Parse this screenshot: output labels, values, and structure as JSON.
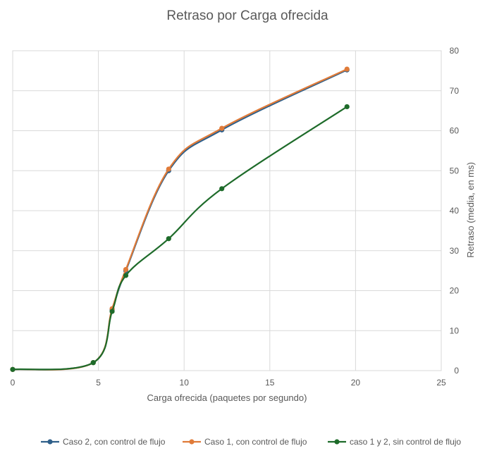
{
  "chart_data": {
    "type": "line",
    "title": "Retraso por Carga ofrecida",
    "xlabel": "Carga ofrecida (paquetes por segundo)",
    "ylabel": "Retraso (media, en ms)",
    "xlim": [
      0,
      25
    ],
    "ylim": [
      0,
      80
    ],
    "x_ticks": [
      "0",
      "5",
      "10",
      "15",
      "20",
      "25"
    ],
    "y_ticks": [
      "0",
      "10",
      "20",
      "30",
      "40",
      "50",
      "60",
      "70",
      "80"
    ],
    "y_axis_side": "right",
    "grid": true,
    "legend_position": "bottom",
    "series": [
      {
        "name": "Caso 2, con control de flujo",
        "color": "#2e5f8a",
        "x": [
          0,
          4.7,
          5.8,
          6.6,
          9.1,
          12.2,
          19.5
        ],
        "y": [
          0.3,
          2.0,
          15.2,
          25.0,
          50.0,
          60.2,
          75.2
        ]
      },
      {
        "name": "Caso 1, con control de flujo",
        "color": "#e07b39",
        "x": [
          0,
          4.7,
          5.8,
          6.6,
          9.1,
          12.2,
          19.5
        ],
        "y": [
          0.3,
          2.0,
          15.5,
          25.3,
          50.4,
          60.6,
          75.4
        ]
      },
      {
        "name": "caso 1 y 2, sin control de flujo",
        "color": "#1e6b2a",
        "x": [
          0,
          4.7,
          5.8,
          6.6,
          9.1,
          12.2,
          19.5
        ],
        "y": [
          0.3,
          2.0,
          14.8,
          23.8,
          33.0,
          45.5,
          66.0
        ]
      }
    ]
  }
}
